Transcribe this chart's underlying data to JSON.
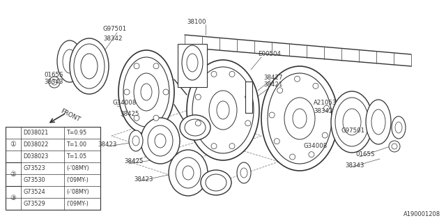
{
  "bg_color": "#ffffff",
  "line_color": "#333333",
  "diagram_id": "A190001208",
  "table": {
    "rows": [
      [
        "",
        "D038021",
        "T=0.95"
      ],
      [
        "1",
        "D038022",
        "T=1.00"
      ],
      [
        "",
        "D038023",
        "T=1.05"
      ],
      [
        "2",
        "G73523",
        "(-'08MY)"
      ],
      [
        "",
        "G73530",
        "('09MY-)"
      ],
      [
        "3",
        "G73524",
        "(-'08MY)"
      ],
      [
        "",
        "G73529",
        "('09MY-)"
      ]
    ]
  }
}
